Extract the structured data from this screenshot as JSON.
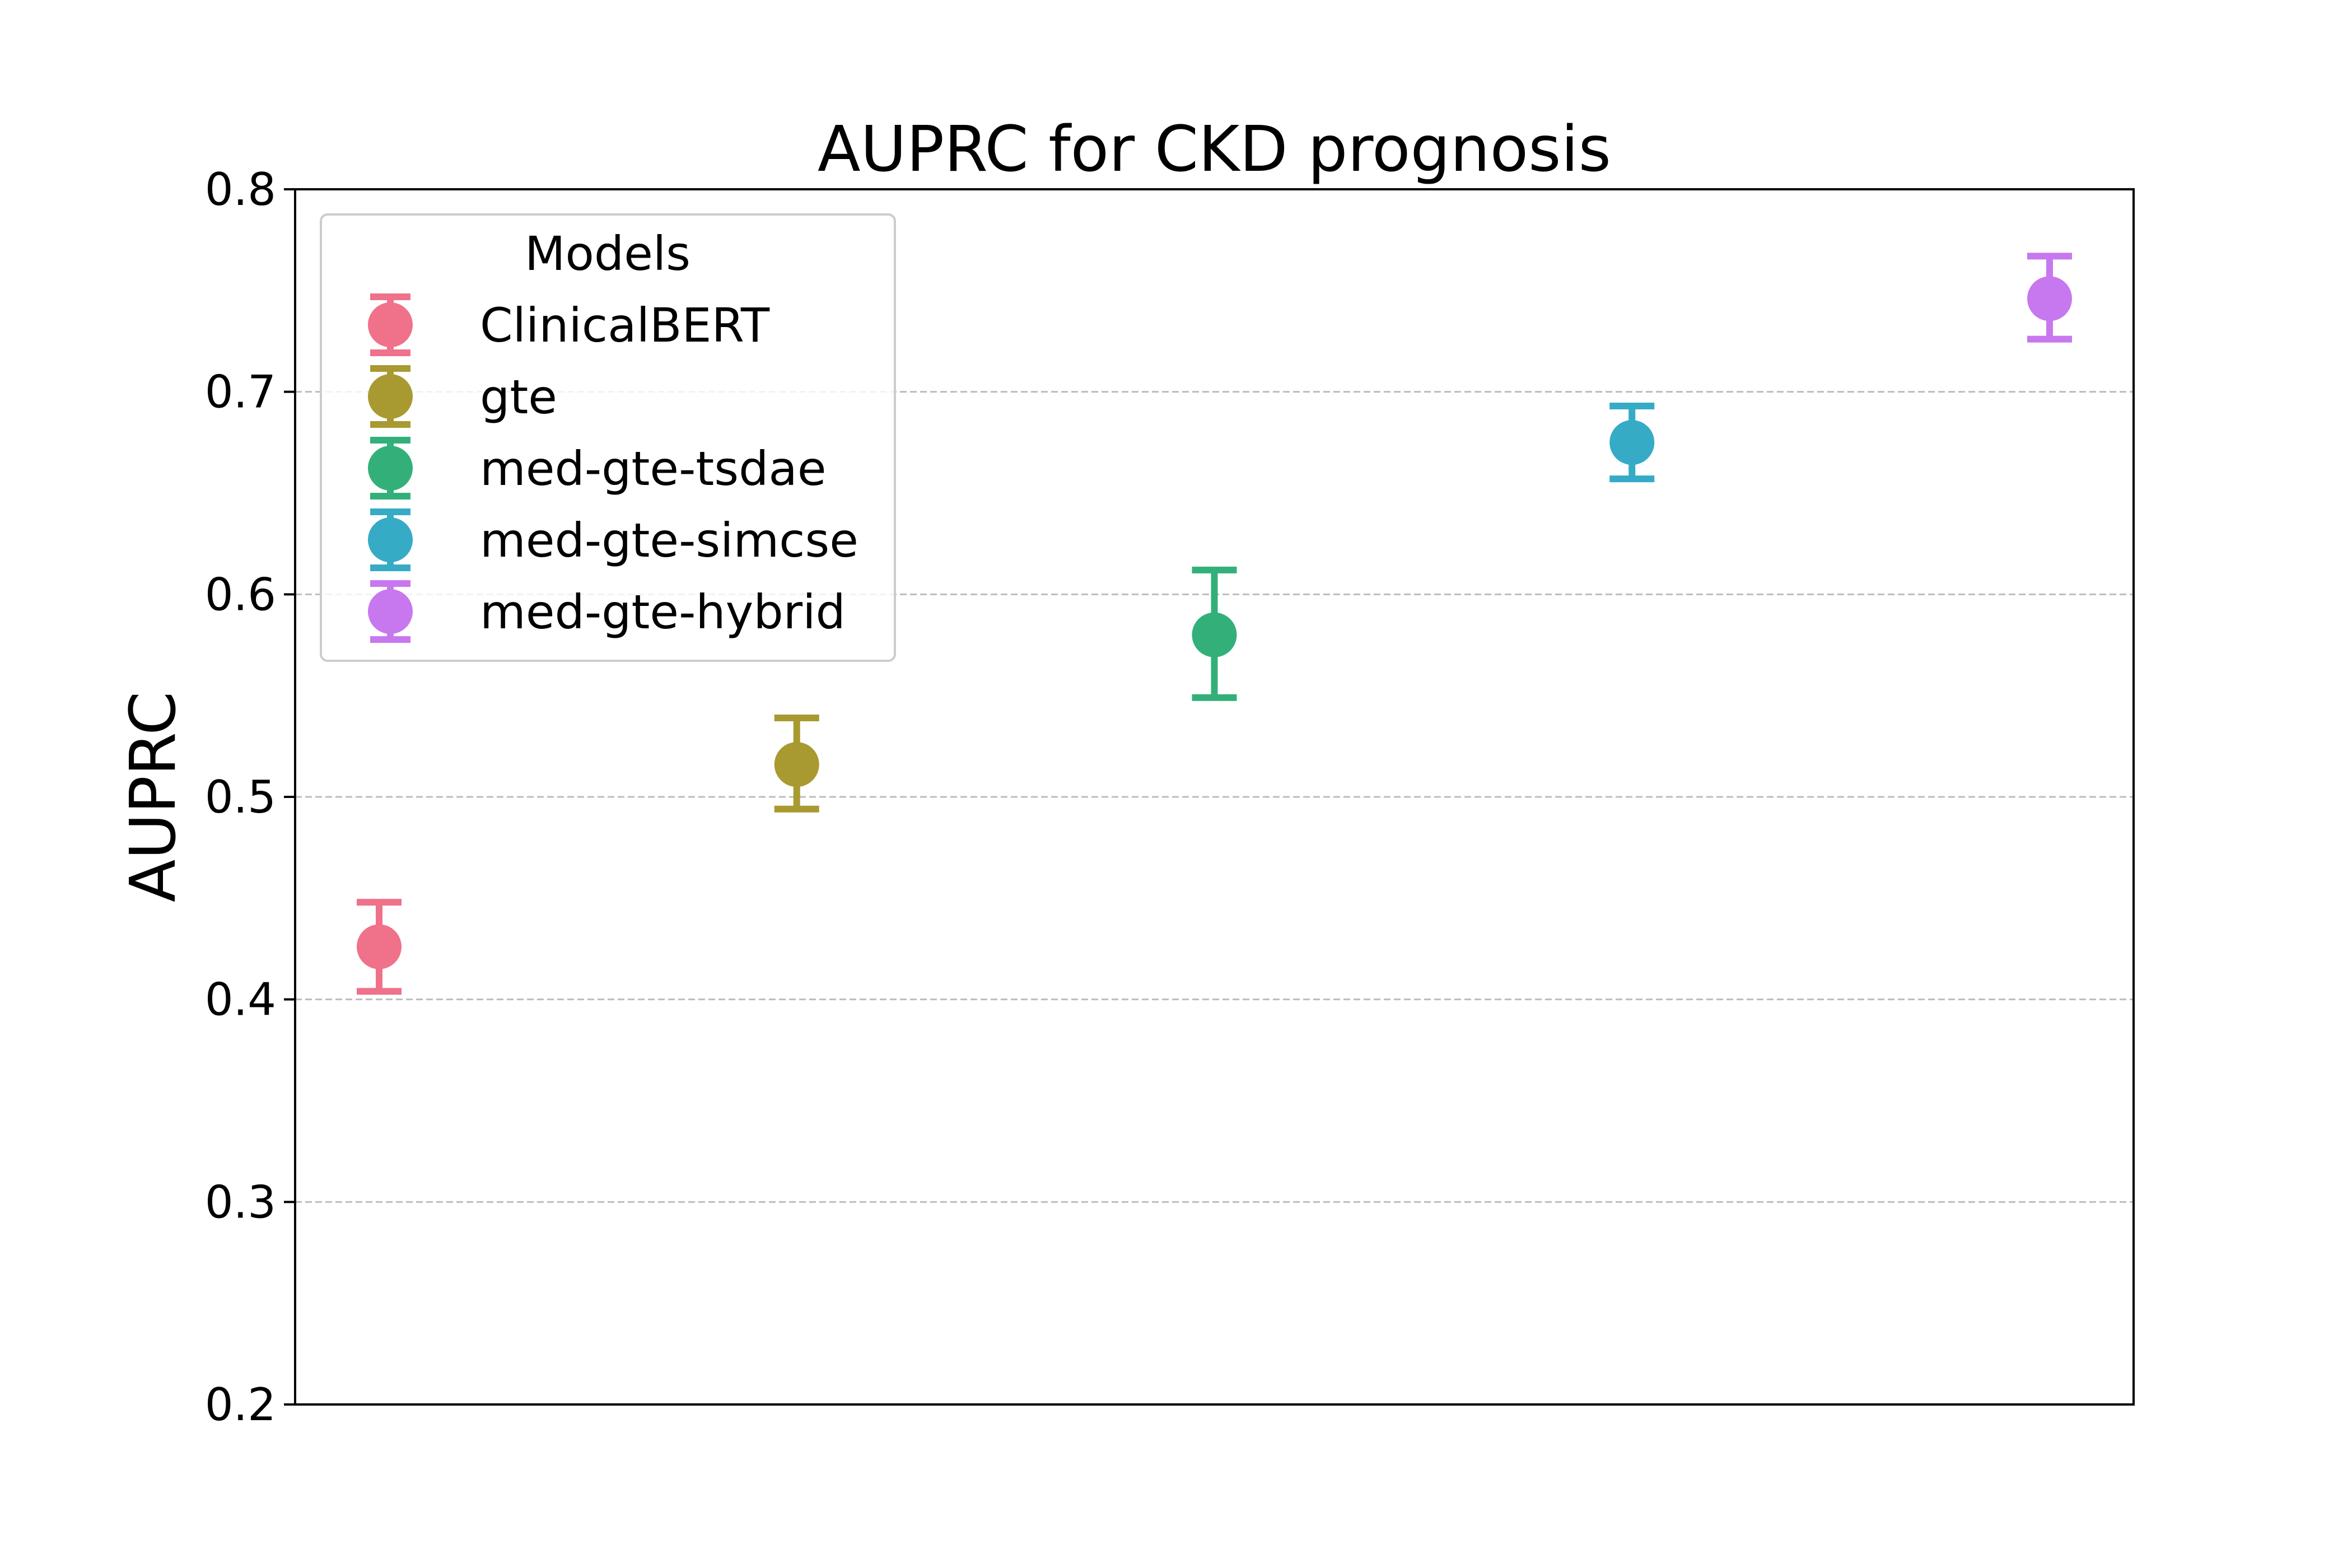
{
  "chart_data": {
    "type": "scatter",
    "title": "AUPRC for CKD prognosis",
    "xlabel": "",
    "ylabel": "AUPRC",
    "ylim": [
      0.2,
      0.8
    ],
    "yticks": [
      "0.2",
      "0.3",
      "0.4",
      "0.5",
      "0.6",
      "0.7",
      "0.8"
    ],
    "grid": "horizontal dashed",
    "legend": {
      "title": "Models",
      "placement": "top-left"
    },
    "series": [
      {
        "name": "ClinicalBERT",
        "value": 0.426,
        "lower": 0.404,
        "upper": 0.448,
        "color": "#f0718a"
      },
      {
        "name": "gte",
        "value": 0.516,
        "lower": 0.494,
        "upper": 0.539,
        "color": "#a89a30"
      },
      {
        "name": "med-gte-tsdae",
        "value": 0.58,
        "lower": 0.549,
        "upper": 0.612,
        "color": "#33b07a"
      },
      {
        "name": "med-gte-simcse",
        "value": 0.675,
        "lower": 0.657,
        "upper": 0.693,
        "color": "#36abc6"
      },
      {
        "name": "med-gte-hybrid",
        "value": 0.746,
        "lower": 0.726,
        "upper": 0.767,
        "color": "#c878ee"
      }
    ]
  }
}
